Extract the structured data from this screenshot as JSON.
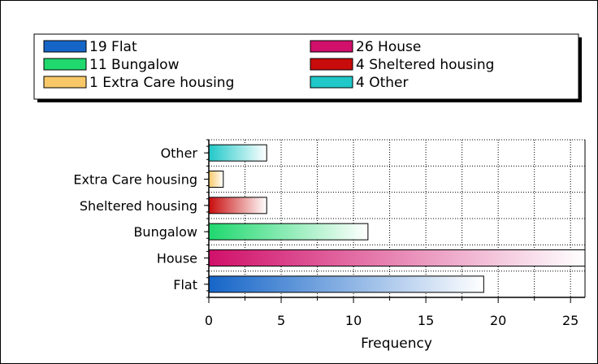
{
  "chart_data": {
    "type": "bar",
    "orientation": "horizontal",
    "categories": [
      "Flat",
      "House",
      "Bungalow",
      "Sheltered housing",
      "Extra Care housing",
      "Other"
    ],
    "values": [
      19,
      26,
      11,
      4,
      1,
      4
    ],
    "colors": [
      "#1565c8",
      "#d0106a",
      "#1fd86e",
      "#c80c0c",
      "#f8c868",
      "#20c8c8"
    ],
    "xlabel": "Frequency",
    "ylabel": "",
    "title": "",
    "xlim": [
      0,
      26
    ],
    "xticks": [
      0,
      5,
      10,
      15,
      20,
      25
    ],
    "grid": true,
    "legend": {
      "placement": "top",
      "entries": [
        {
          "text": "19 Flat",
          "color": "#1565c8"
        },
        {
          "text": "26 House",
          "color": "#d0106a"
        },
        {
          "text": "11 Bungalow",
          "color": "#1fd86e"
        },
        {
          "text": "4 Sheltered housing",
          "color": "#c80c0c"
        },
        {
          "text": "1 Extra Care housing",
          "color": "#f8c868"
        },
        {
          "text": "4 Other",
          "color": "#20c8c8"
        }
      ]
    }
  }
}
